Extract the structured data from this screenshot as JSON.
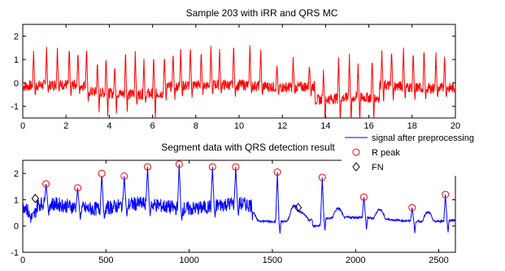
{
  "chart_data": [
    {
      "type": "line",
      "title": "Sample 203 with iRR and QRS MC",
      "xlim": [
        0,
        20
      ],
      "ylim": [
        -1.5,
        2.5
      ],
      "x_ticks": [
        "0",
        "2",
        "4",
        "6",
        "8",
        "10",
        "12",
        "14",
        "16",
        "18",
        "20"
      ],
      "y_ticks": [
        "2",
        "1",
        "0",
        "-1"
      ],
      "y_tick_values": [
        2,
        1,
        0,
        -1
      ],
      "x_tick_values": [
        0,
        2,
        4,
        6,
        8,
        10,
        12,
        14,
        16,
        18,
        20
      ],
      "color": "#ff0000",
      "beats": [
        {
          "x": 0.5,
          "r": 1.45,
          "s": -0.5
        },
        {
          "x": 1.1,
          "r": 1.65,
          "s": -0.4
        },
        {
          "x": 1.6,
          "r": 1.6,
          "s": -0.35
        },
        {
          "x": 2.15,
          "r": 1.6,
          "s": -0.5
        },
        {
          "x": 2.55,
          "r": 1.5,
          "s": -0.4
        },
        {
          "x": 2.95,
          "r": 1.7,
          "s": -0.45
        },
        {
          "x": 3.45,
          "r": 1.35,
          "s": -0.9
        },
        {
          "x": 3.85,
          "r": 1.6,
          "s": -1.05
        },
        {
          "x": 4.25,
          "r": 1.25,
          "s": -0.9
        },
        {
          "x": 4.75,
          "r": 1.95,
          "s": -0.8
        },
        {
          "x": 5.2,
          "r": 1.85,
          "s": -0.55
        },
        {
          "x": 5.6,
          "r": 1.5,
          "s": -0.45
        },
        {
          "x": 6.05,
          "r": 1.65,
          "s": -1.25
        },
        {
          "x": 6.55,
          "r": 1.35,
          "s": -0.6
        },
        {
          "x": 6.95,
          "r": 1.5,
          "s": -0.6
        },
        {
          "x": 7.3,
          "r": 1.6,
          "s": -0.55
        },
        {
          "x": 7.75,
          "r": 1.75,
          "s": -0.55
        },
        {
          "x": 8.25,
          "r": 1.45,
          "s": -0.45
        },
        {
          "x": 8.7,
          "r": 1.65,
          "s": -0.5
        },
        {
          "x": 9.1,
          "r": 1.55,
          "s": -0.45
        },
        {
          "x": 9.75,
          "r": 1.85,
          "s": -0.5
        },
        {
          "x": 10.5,
          "r": 1.7,
          "s": -0.4
        },
        {
          "x": 11.0,
          "r": 1.55,
          "s": -0.45
        },
        {
          "x": 11.75,
          "r": 1.0,
          "s": -0.35
        },
        {
          "x": 12.5,
          "r": 1.25,
          "s": -0.35
        },
        {
          "x": 13.25,
          "r": 1.0,
          "s": -0.45
        },
        {
          "x": 13.9,
          "r": 1.3,
          "s": -1.4
        },
        {
          "x": 14.6,
          "r": 1.8,
          "s": -1.45
        },
        {
          "x": 15.1,
          "r": 1.85,
          "s": -1.4
        },
        {
          "x": 15.5,
          "r": 1.45,
          "s": -1.1
        },
        {
          "x": 16.15,
          "r": 1.7,
          "s": -0.9
        },
        {
          "x": 16.6,
          "r": 1.5,
          "s": -0.85
        },
        {
          "x": 17.05,
          "r": 1.6,
          "s": -0.65
        },
        {
          "x": 17.6,
          "r": 1.7,
          "s": -0.6
        },
        {
          "x": 18.05,
          "r": 1.6,
          "s": -0.55
        },
        {
          "x": 18.55,
          "r": 1.7,
          "s": -0.5
        },
        {
          "x": 19.1,
          "r": 1.5,
          "s": -0.45
        },
        {
          "x": 19.5,
          "r": 1.4,
          "s": -0.45
        }
      ]
    },
    {
      "type": "line",
      "title": "Segment data with QRS detection result",
      "xlim": [
        0,
        2600
      ],
      "ylim": [
        -1,
        2.5
      ],
      "x_ticks": [
        "0",
        "500",
        "1000",
        "1500",
        "2000",
        "2500"
      ],
      "x_tick_values": [
        0,
        500,
        1000,
        1500,
        2000,
        2500
      ],
      "y_ticks": [
        "2",
        "1",
        "0",
        "-1"
      ],
      "y_tick_values": [
        2,
        1,
        0,
        -1
      ],
      "color": "#0000ff",
      "r_peaks": [
        {
          "x": 140,
          "y": 1.6
        },
        {
          "x": 330,
          "y": 1.45
        },
        {
          "x": 475,
          "y": 2.0
        },
        {
          "x": 610,
          "y": 1.9
        },
        {
          "x": 750,
          "y": 2.25
        },
        {
          "x": 940,
          "y": 2.35
        },
        {
          "x": 1140,
          "y": 2.25
        },
        {
          "x": 1280,
          "y": 2.25
        },
        {
          "x": 1530,
          "y": 2.05
        },
        {
          "x": 1800,
          "y": 1.85
        },
        {
          "x": 2050,
          "y": 1.1
        },
        {
          "x": 2340,
          "y": 0.7
        },
        {
          "x": 2540,
          "y": 1.2
        }
      ],
      "fn": [
        {
          "x": 75,
          "y": 1.05
        },
        {
          "x": 1655,
          "y": 0.7
        }
      ],
      "legend": {
        "placement": "top-right",
        "entries": [
          {
            "label": "signal after preprocessing",
            "marker": "line",
            "color": "#0000ff"
          },
          {
            "label": "R peak",
            "marker": "circle",
            "color": "#ff0000"
          },
          {
            "label": "FN",
            "marker": "diamond",
            "color": "#000000"
          }
        ]
      }
    }
  ]
}
